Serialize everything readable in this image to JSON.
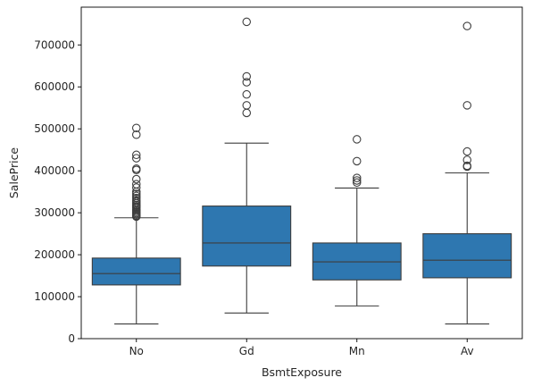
{
  "chart_data": {
    "type": "box",
    "title": "",
    "xlabel": "BsmtExposure",
    "ylabel": "SalePrice",
    "categories": [
      "No",
      "Gd",
      "Mn",
      "Av"
    ],
    "ylim": [
      0,
      790000
    ],
    "yticks": [
      0,
      100000,
      200000,
      300000,
      400000,
      500000,
      600000,
      700000
    ],
    "ytick_labels": [
      "0",
      "100000",
      "200000",
      "300000",
      "400000",
      "500000",
      "600000",
      "700000"
    ],
    "grid": false,
    "legend": "none",
    "box_color": "#2e77b0",
    "line_color": "#3d3d3d",
    "boxes": [
      {
        "category": "No",
        "whisker_low": 35000,
        "q1": 128000,
        "median": 155000,
        "q3": 192000,
        "whisker_high": 288000,
        "outliers": [
          291000,
          293000,
          296000,
          299000,
          302000,
          305000,
          308000,
          312000,
          315000,
          318000,
          322000,
          326000,
          330000,
          335000,
          340000,
          345000,
          350000,
          360000,
          368000,
          380000,
          402000,
          405000,
          430000,
          438000,
          486000,
          502000
        ]
      },
      {
        "category": "Gd",
        "whisker_low": 61000,
        "q1": 173000,
        "median": 228000,
        "q3": 316000,
        "whisker_high": 466000,
        "outliers": [
          538000,
          556000,
          582000,
          611000,
          625000,
          755000
        ]
      },
      {
        "category": "Mn",
        "whisker_low": 78000,
        "q1": 140000,
        "median": 183000,
        "q3": 228000,
        "whisker_high": 359000,
        "outliers": [
          372000,
          377000,
          383000,
          423000,
          475000
        ]
      },
      {
        "category": "Av",
        "whisker_low": 35000,
        "q1": 145000,
        "median": 187000,
        "q3": 250000,
        "whisker_high": 395000,
        "outliers": [
          410000,
          412000,
          426000,
          446000,
          556000,
          745000
        ]
      }
    ]
  }
}
